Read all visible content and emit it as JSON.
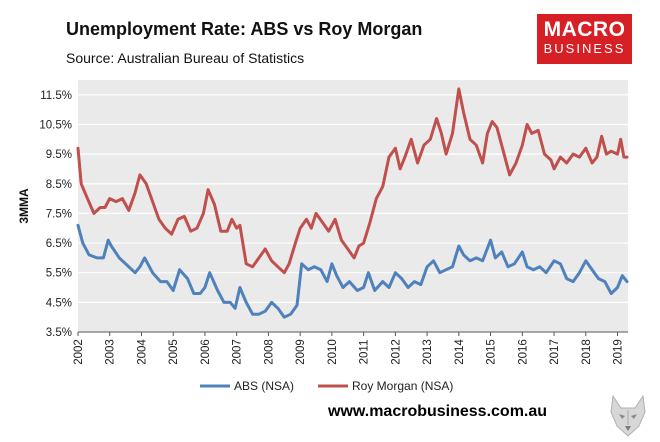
{
  "header": {
    "title": "Unemployment Rate: ABS vs Roy Morgan",
    "source": "Source: Australian Bureau of Statistics"
  },
  "logo": {
    "line1": "MACRO",
    "line2": "BUSINESS"
  },
  "footer": {
    "website": "www.macrobusiness.com.au"
  },
  "colors": {
    "abs": "#4f81bd",
    "roy_morgan": "#c0504d",
    "plot_bg": "#eaeaea",
    "logo_bg": "#d71f26"
  },
  "chart_data": {
    "type": "line",
    "title": "Unemployment Rate: ABS vs Roy Morgan",
    "subtitle": "Source: Australian Bureau of Statistics",
    "ylabel": "3MMA",
    "xlabel": "",
    "ylim": [
      3.5,
      12.0
    ],
    "xlim": [
      2002.0,
      2019.33
    ],
    "yticks": [
      3.5,
      4.5,
      5.5,
      6.5,
      7.5,
      8.5,
      9.5,
      10.5,
      11.5
    ],
    "ytick_labels": [
      "3.5%",
      "4.5%",
      "5.5%",
      "6.5%",
      "7.5%",
      "8.5%",
      "9.5%",
      "10.5%",
      "11.5%"
    ],
    "xticks": [
      2002,
      2003,
      2004,
      2005,
      2006,
      2007,
      2008,
      2009,
      2010,
      2011,
      2012,
      2013,
      2014,
      2015,
      2016,
      2017,
      2018,
      2019
    ],
    "xtick_labels": [
      "2002",
      "2003",
      "2004",
      "2005",
      "2006",
      "2007",
      "2008",
      "2009",
      "2010",
      "2011",
      "2012",
      "2013",
      "2014",
      "2015",
      "2016",
      "2017",
      "2018",
      "2019"
    ],
    "grid": "horizontal",
    "legend": "bottom",
    "series": [
      {
        "name": "ABS (NSA)",
        "x": [
          2002.0,
          2002.15,
          2002.35,
          2002.6,
          2002.8,
          2002.95,
          2003.05,
          2003.3,
          2003.6,
          2003.8,
          2003.95,
          2004.1,
          2004.35,
          2004.6,
          2004.8,
          2005.0,
          2005.2,
          2005.45,
          2005.65,
          2005.85,
          2006.0,
          2006.15,
          2006.4,
          2006.6,
          2006.8,
          2006.95,
          2007.1,
          2007.3,
          2007.5,
          2007.7,
          2007.9,
          2008.1,
          2008.3,
          2008.5,
          2008.7,
          2008.9,
          2009.05,
          2009.25,
          2009.45,
          2009.65,
          2009.85,
          2010.0,
          2010.15,
          2010.35,
          2010.55,
          2010.8,
          2011.0,
          2011.15,
          2011.35,
          2011.6,
          2011.8,
          2012.0,
          2012.2,
          2012.4,
          2012.6,
          2012.8,
          2013.0,
          2013.2,
          2013.4,
          2013.6,
          2013.8,
          2014.0,
          2014.15,
          2014.35,
          2014.55,
          2014.75,
          2015.0,
          2015.15,
          2015.35,
          2015.55,
          2015.75,
          2016.0,
          2016.15,
          2016.35,
          2016.55,
          2016.75,
          2017.0,
          2017.2,
          2017.4,
          2017.6,
          2017.8,
          2018.0,
          2018.2,
          2018.4,
          2018.6,
          2018.8,
          2019.0,
          2019.15,
          2019.3
        ],
        "values": [
          7.1,
          6.5,
          6.1,
          6.0,
          6.0,
          6.6,
          6.4,
          6.0,
          5.7,
          5.5,
          5.7,
          6.0,
          5.5,
          5.2,
          5.2,
          4.9,
          5.6,
          5.3,
          4.8,
          4.8,
          5.0,
          5.5,
          4.9,
          4.5,
          4.5,
          4.3,
          5.0,
          4.5,
          4.1,
          4.1,
          4.2,
          4.5,
          4.3,
          4.0,
          4.1,
          4.4,
          5.8,
          5.6,
          5.7,
          5.6,
          5.2,
          5.8,
          5.4,
          5.0,
          5.2,
          4.9,
          5.0,
          5.5,
          4.9,
          5.2,
          5.0,
          5.5,
          5.3,
          5.0,
          5.2,
          5.1,
          5.7,
          5.9,
          5.5,
          5.6,
          5.7,
          6.4,
          6.1,
          5.9,
          6.0,
          5.9,
          6.6,
          6.0,
          6.2,
          5.7,
          5.8,
          6.2,
          5.7,
          5.6,
          5.7,
          5.5,
          5.9,
          5.8,
          5.3,
          5.2,
          5.5,
          5.9,
          5.6,
          5.3,
          5.2,
          4.8,
          5.0,
          5.4,
          5.2
        ]
      },
      {
        "name": "Roy Morgan (NSA)",
        "x": [
          2002.0,
          2002.1,
          2002.3,
          2002.5,
          2002.7,
          2002.85,
          2003.0,
          2003.2,
          2003.4,
          2003.6,
          2003.8,
          2003.95,
          2004.15,
          2004.35,
          2004.55,
          2004.75,
          2004.95,
          2005.15,
          2005.35,
          2005.55,
          2005.75,
          2005.95,
          2006.1,
          2006.3,
          2006.5,
          2006.7,
          2006.85,
          2007.0,
          2007.1,
          2007.3,
          2007.5,
          2007.7,
          2007.9,
          2008.1,
          2008.3,
          2008.5,
          2008.65,
          2008.85,
          2009.0,
          2009.2,
          2009.35,
          2009.5,
          2009.7,
          2009.9,
          2010.1,
          2010.3,
          2010.5,
          2010.7,
          2010.85,
          2011.0,
          2011.2,
          2011.4,
          2011.6,
          2011.8,
          2012.0,
          2012.15,
          2012.3,
          2012.5,
          2012.7,
          2012.9,
          2013.1,
          2013.3,
          2013.45,
          2013.6,
          2013.8,
          2014.0,
          2014.15,
          2014.35,
          2014.55,
          2014.75,
          2014.9,
          2015.05,
          2015.2,
          2015.4,
          2015.6,
          2015.8,
          2016.0,
          2016.15,
          2016.3,
          2016.5,
          2016.7,
          2016.9,
          2017.0,
          2017.2,
          2017.4,
          2017.6,
          2017.8,
          2018.0,
          2018.2,
          2018.35,
          2018.5,
          2018.65,
          2018.8,
          2019.0,
          2019.1,
          2019.2,
          2019.3
        ],
        "values": [
          9.7,
          8.5,
          8.0,
          7.5,
          7.7,
          7.7,
          8.0,
          7.9,
          8.0,
          7.6,
          8.2,
          8.8,
          8.5,
          7.9,
          7.3,
          7.0,
          6.8,
          7.3,
          7.4,
          6.9,
          7.0,
          7.5,
          8.3,
          7.8,
          6.9,
          6.9,
          7.3,
          7.0,
          7.1,
          5.8,
          5.7,
          6.0,
          6.3,
          5.9,
          5.7,
          5.5,
          5.8,
          6.5,
          7.0,
          7.3,
          7.0,
          7.5,
          7.2,
          6.9,
          7.3,
          6.6,
          6.3,
          6.0,
          6.4,
          6.5,
          7.2,
          8.0,
          8.4,
          9.4,
          9.7,
          9.0,
          9.4,
          10.0,
          9.2,
          9.8,
          10.0,
          10.7,
          10.2,
          9.5,
          10.2,
          11.7,
          10.9,
          10.0,
          9.8,
          9.2,
          10.2,
          10.6,
          10.4,
          9.6,
          8.8,
          9.2,
          9.8,
          10.5,
          10.2,
          10.3,
          9.5,
          9.3,
          9.0,
          9.4,
          9.2,
          9.5,
          9.4,
          9.7,
          9.2,
          9.4,
          10.1,
          9.5,
          9.6,
          9.5,
          10.0,
          9.4,
          9.4
        ]
      }
    ]
  }
}
